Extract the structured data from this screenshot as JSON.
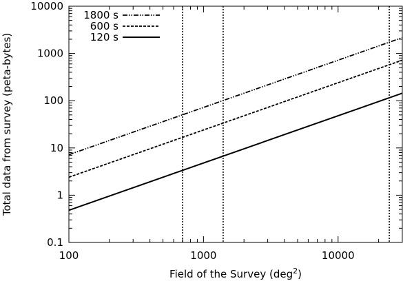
{
  "chart_data": {
    "type": "line",
    "title": "",
    "xlabel": "Field of the Survey (deg",
    "xlabel_sup": "2",
    "xlabel_suffix": ")",
    "ylabel": "Total data from survey (peta-bytes)",
    "xscale": "log",
    "yscale": "log",
    "xlim": [
      100,
      30000
    ],
    "ylim": [
      0.1,
      10000
    ],
    "x_ticks": [
      {
        "value": 100,
        "label": "100"
      },
      {
        "value": 1000,
        "label": "1000"
      },
      {
        "value": 10000,
        "label": "10000"
      }
    ],
    "y_ticks": [
      {
        "value": 0.1,
        "label": "0.1"
      },
      {
        "value": 1,
        "label": "1"
      },
      {
        "value": 10,
        "label": "10"
      },
      {
        "value": 100,
        "label": "100"
      },
      {
        "value": 1000,
        "label": "1000"
      },
      {
        "value": 10000,
        "label": "10000"
      }
    ],
    "grid": false,
    "legend_position": "top-left",
    "series": [
      {
        "name": "1800 s",
        "style": "dash-dot-dot",
        "color": "#000000",
        "x": [
          100,
          30000
        ],
        "y": [
          7.2,
          2160
        ]
      },
      {
        "name": "600 s",
        "style": "dashed",
        "color": "#000000",
        "x": [
          100,
          30000
        ],
        "y": [
          2.4,
          720
        ]
      },
      {
        "name": "120 s",
        "style": "solid",
        "color": "#000000",
        "x": [
          100,
          30000
        ],
        "y": [
          0.48,
          144
        ]
      }
    ],
    "vertical_lines": [
      {
        "x": 700,
        "style": "dotted"
      },
      {
        "x": 1400,
        "style": "dotted"
      },
      {
        "x": 24000,
        "style": "dotted"
      }
    ]
  }
}
